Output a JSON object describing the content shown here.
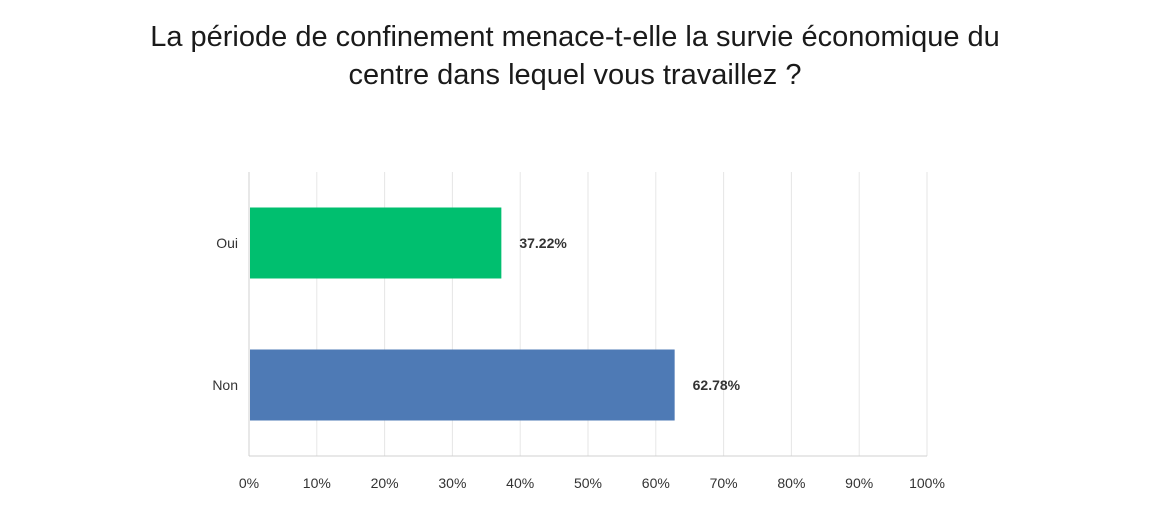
{
  "chart_data": {
    "type": "bar",
    "orientation": "horizontal",
    "title_lines": [
      "La période de confinement menace-t-elle la survie économique du",
      "centre dans lequel vous travaillez ?"
    ],
    "categories": [
      "Oui",
      "Non"
    ],
    "values": [
      37.22,
      62.78
    ],
    "value_labels": [
      "37.22%",
      "62.78%"
    ],
    "bar_colors": [
      "#00bf6f",
      "#4e7ab5"
    ],
    "xlim": [
      0,
      100
    ],
    "x_ticks": [
      "0%",
      "10%",
      "20%",
      "30%",
      "40%",
      "50%",
      "60%",
      "70%",
      "80%",
      "90%",
      "100%"
    ],
    "grid": true,
    "legend": "none"
  }
}
